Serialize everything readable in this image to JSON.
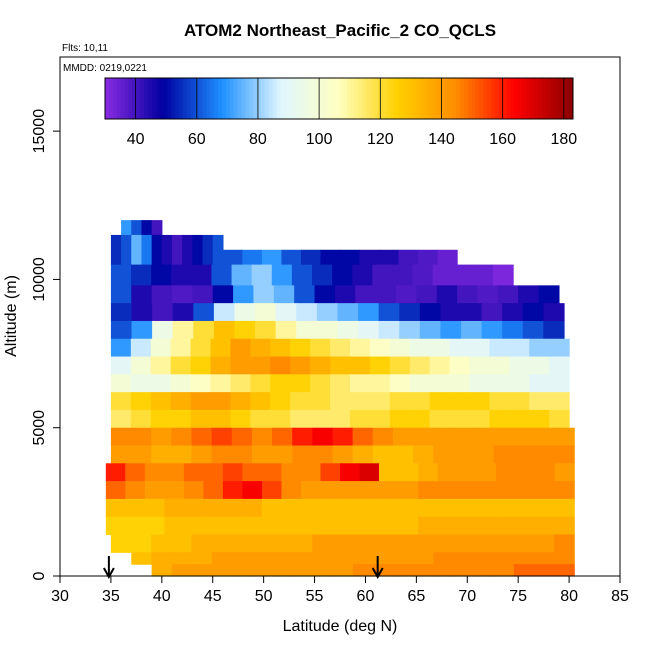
{
  "chart_data": {
    "type": "heatmap",
    "title": "ATOM2 Northeast_Pacific_2 CO_QCLS",
    "annotations": [
      "Flts: 10,11",
      "MMDD: 0219,0221"
    ],
    "xlabel": "Latitude (deg N)",
    "ylabel": "Altitude (m)",
    "xlim": [
      30,
      85
    ],
    "ylim": [
      0,
      17500
    ],
    "x_ticks": [
      30,
      35,
      40,
      45,
      50,
      55,
      60,
      65,
      70,
      75,
      80,
      85
    ],
    "y_ticks": [
      0,
      5000,
      10000,
      15000
    ],
    "grid": false,
    "colorbar": {
      "range": [
        30,
        183
      ],
      "ticks": [
        40,
        60,
        80,
        100,
        120,
        140,
        160,
        180
      ],
      "colors": [
        "#8a2be2",
        "#0000a0",
        "#1e90ff",
        "#e0f6ff",
        "#ffffc0",
        "#ffd000",
        "#ff8c00",
        "#ff0000",
        "#8b0000"
      ]
    },
    "arrows_at_latitude": [
      34.8,
      61.2
    ],
    "layers": [
      {
        "alt_bottom": 11500,
        "alt_top": 12000,
        "lat_start": 36,
        "lat_end": 40,
        "values": [
          70,
          60,
          50,
          40
        ]
      },
      {
        "alt_bottom": 10500,
        "alt_top": 11500,
        "lat_start": 35,
        "lat_end": 46,
        "values": [
          55,
          60,
          75,
          65,
          50,
          45,
          40,
          45,
          50,
          55,
          60
        ]
      },
      {
        "alt_bottom": 10500,
        "alt_top": 11000,
        "lat_start": 46,
        "lat_end": 69,
        "values": [
          60,
          65,
          70,
          60,
          55,
          50,
          50,
          45,
          45,
          40,
          38,
          35
        ]
      },
      {
        "alt_bottom": 9800,
        "alt_top": 10500,
        "lat_start": 35,
        "lat_end": 74.5,
        "values": [
          60,
          55,
          50,
          45,
          45,
          60,
          75,
          80,
          70,
          60,
          55,
          50,
          45,
          40,
          40,
          38,
          35,
          35,
          35,
          32
        ]
      },
      {
        "alt_bottom": 9200,
        "alt_top": 9800,
        "lat_start": 35,
        "lat_end": 79,
        "values": [
          60,
          45,
          40,
          38,
          40,
          50,
          70,
          80,
          75,
          60,
          50,
          45,
          40,
          40,
          38,
          40,
          45,
          40,
          38,
          40,
          45,
          50
        ]
      },
      {
        "alt_bottom": 8600,
        "alt_top": 9200,
        "lat_start": 35,
        "lat_end": 79.5,
        "values": [
          55,
          45,
          40,
          45,
          60,
          85,
          95,
          100,
          90,
          85,
          80,
          75,
          70,
          60,
          55,
          50,
          45,
          45,
          40,
          45,
          50,
          45
        ]
      },
      {
        "alt_bottom": 8000,
        "alt_top": 8600,
        "lat_start": 35,
        "lat_end": 79.5,
        "values": [
          60,
          70,
          95,
          110,
          120,
          130,
          125,
          120,
          110,
          100,
          100,
          95,
          90,
          85,
          80,
          75,
          70,
          75,
          70,
          65,
          60,
          55
        ]
      },
      {
        "alt_bottom": 7400,
        "alt_top": 8000,
        "lat_start": 35,
        "lat_end": 80,
        "values": [
          70,
          85,
          100,
          110,
          120,
          130,
          140,
          135,
          130,
          125,
          120,
          115,
          110,
          105,
          100,
          95,
          95,
          90,
          90,
          85,
          85,
          80,
          80
        ]
      },
      {
        "alt_bottom": 6800,
        "alt_top": 7400,
        "lat_start": 35,
        "lat_end": 80,
        "values": [
          90,
          100,
          110,
          120,
          125,
          135,
          140,
          140,
          145,
          140,
          135,
          130,
          130,
          125,
          120,
          115,
          110,
          105,
          100,
          100,
          95,
          95,
          90
        ]
      },
      {
        "alt_bottom": 6200,
        "alt_top": 6800,
        "lat_start": 35,
        "lat_end": 80,
        "values": [
          100,
          95,
          95,
          100,
          105,
          110,
          115,
          120,
          125,
          125,
          120,
          115,
          110,
          110,
          105,
          100,
          100,
          100,
          95,
          95,
          95,
          90,
          90
        ]
      },
      {
        "alt_bottom": 5600,
        "alt_top": 6200,
        "lat_start": 35,
        "lat_end": 80,
        "values": [
          120,
          125,
          130,
          135,
          140,
          140,
          135,
          130,
          125,
          120,
          120,
          115,
          115,
          115,
          120,
          120,
          125,
          125,
          125,
          120,
          120,
          115,
          115
        ]
      },
      {
        "alt_bottom": 5000,
        "alt_top": 5600,
        "lat_start": 35,
        "lat_end": 80,
        "values": [
          115,
          120,
          125,
          125,
          130,
          130,
          125,
          120,
          120,
          115,
          115,
          115,
          120,
          120,
          125,
          125,
          120,
          120,
          120,
          125,
          125,
          125,
          120
        ]
      },
      {
        "alt_bottom": 4400,
        "alt_top": 5000,
        "lat_start": 35,
        "lat_end": 80.5,
        "values": [
          145,
          145,
          140,
          145,
          150,
          155,
          150,
          145,
          150,
          160,
          165,
          160,
          150,
          145,
          140,
          140,
          140,
          140,
          140,
          140,
          140,
          140,
          140
        ]
      },
      {
        "alt_bottom": 3800,
        "alt_top": 4400,
        "lat_start": 35,
        "lat_end": 80.5,
        "values": [
          140,
          140,
          135,
          135,
          140,
          145,
          145,
          140,
          140,
          145,
          145,
          140,
          135,
          130,
          130,
          135,
          140,
          140,
          140,
          145,
          145,
          145,
          145
        ]
      },
      {
        "alt_bottom": 3200,
        "alt_top": 3800,
        "lat_start": 34.5,
        "lat_end": 80.5,
        "values": [
          160,
          150,
          145,
          145,
          150,
          150,
          155,
          150,
          150,
          145,
          145,
          155,
          165,
          170,
          130,
          130,
          135,
          140,
          140,
          140,
          145,
          145,
          145,
          140
        ]
      },
      {
        "alt_bottom": 2600,
        "alt_top": 3200,
        "lat_start": 34.5,
        "lat_end": 80.5,
        "values": [
          150,
          145,
          140,
          140,
          145,
          150,
          160,
          165,
          155,
          145,
          140,
          140,
          140,
          140,
          140,
          140,
          145,
          145,
          145,
          145,
          145,
          145,
          145,
          145
        ]
      },
      {
        "alt_bottom": 2000,
        "alt_top": 2600,
        "lat_start": 34.5,
        "lat_end": 80.5,
        "values": [
          130,
          130,
          130,
          135,
          135,
          135,
          135,
          135,
          130,
          130,
          130,
          130,
          130,
          130,
          130,
          130,
          130,
          130,
          130,
          130,
          130,
          130,
          130,
          130
        ]
      },
      {
        "alt_bottom": 1400,
        "alt_top": 2000,
        "lat_start": 34.5,
        "lat_end": 80.5,
        "values": [
          125,
          125,
          125,
          130,
          130,
          130,
          130,
          130,
          130,
          130,
          130,
          130,
          130,
          130,
          130,
          130,
          135,
          135,
          135,
          135,
          135,
          135,
          135,
          135
        ]
      },
      {
        "alt_bottom": 800,
        "alt_top": 1400,
        "lat_start": 35,
        "lat_end": 80.5,
        "values": [
          125,
          125,
          130,
          130,
          135,
          135,
          135,
          135,
          135,
          135,
          140,
          140,
          140,
          140,
          140,
          140,
          140,
          140,
          140,
          140,
          140,
          140,
          145
        ]
      },
      {
        "alt_bottom": 400,
        "alt_top": 800,
        "lat_start": 37,
        "lat_end": 80.5,
        "values": [
          130,
          135,
          135,
          135,
          140,
          140,
          140,
          140,
          140,
          140,
          140,
          140,
          140,
          140,
          140,
          145,
          145,
          145,
          145,
          145,
          145,
          145
        ]
      },
      {
        "alt_bottom": 0,
        "alt_top": 400,
        "lat_start": 39,
        "lat_end": 80.5,
        "values": [
          135,
          140,
          140,
          140,
          140,
          140,
          140,
          140,
          140,
          140,
          145,
          145,
          145,
          145,
          145,
          145,
          145,
          145,
          150,
          150,
          150
        ]
      }
    ]
  }
}
